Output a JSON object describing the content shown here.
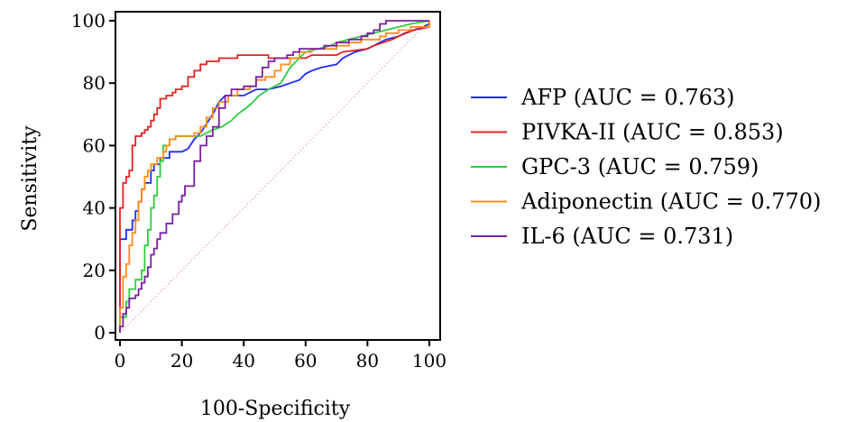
{
  "chart_data": {
    "type": "line",
    "title": "",
    "xlabel": "100-Specificity",
    "ylabel": "Sensitivity",
    "xlim": [
      0,
      100
    ],
    "ylim": [
      0,
      100
    ],
    "x_ticks": [
      "0",
      "20",
      "40",
      "60",
      "80",
      "100"
    ],
    "y_ticks": [
      "0",
      "20",
      "40",
      "60",
      "80",
      "100"
    ],
    "grid": false,
    "legend_position": "right",
    "reference_line": {
      "from": [
        0,
        0
      ],
      "to": [
        100,
        100
      ],
      "color": "#e8a3a3",
      "style": "dotted"
    },
    "series": [
      {
        "name": "AFP (AUC = 0.763)",
        "color": "#1f2bff",
        "points": [
          [
            0,
            0
          ],
          [
            0,
            4
          ],
          [
            0,
            30
          ],
          [
            2,
            30
          ],
          [
            2,
            33
          ],
          [
            4,
            33
          ],
          [
            4,
            36
          ],
          [
            5,
            36
          ],
          [
            5,
            39
          ],
          [
            6,
            39
          ],
          [
            6,
            42
          ],
          [
            7,
            42
          ],
          [
            7,
            46
          ],
          [
            8,
            46
          ],
          [
            8,
            48
          ],
          [
            10,
            48
          ],
          [
            10,
            52
          ],
          [
            11,
            52
          ],
          [
            11,
            54
          ],
          [
            13,
            54
          ],
          [
            13,
            56
          ],
          [
            16,
            56
          ],
          [
            16,
            58
          ],
          [
            20,
            58
          ],
          [
            22,
            59
          ],
          [
            24,
            62
          ],
          [
            26,
            64
          ],
          [
            28,
            67
          ],
          [
            30,
            70
          ],
          [
            32,
            74
          ],
          [
            34,
            76
          ],
          [
            38,
            76
          ],
          [
            40,
            76
          ],
          [
            42,
            77
          ],
          [
            44,
            78
          ],
          [
            48,
            78
          ],
          [
            52,
            79
          ],
          [
            55,
            80
          ],
          [
            58,
            81
          ],
          [
            60,
            83
          ],
          [
            62,
            84
          ],
          [
            65,
            85
          ],
          [
            70,
            86
          ],
          [
            72,
            88
          ],
          [
            76,
            90
          ],
          [
            80,
            91
          ],
          [
            84,
            93
          ],
          [
            86,
            94
          ],
          [
            90,
            95
          ],
          [
            92,
            96
          ],
          [
            95,
            97
          ],
          [
            98,
            98
          ],
          [
            100,
            99
          ],
          [
            100,
            100
          ]
        ]
      },
      {
        "name": "PIVKA-II (AUC = 0.853)",
        "color": "#e62020",
        "points": [
          [
            0,
            0
          ],
          [
            0,
            3
          ],
          [
            0,
            40
          ],
          [
            1,
            40
          ],
          [
            1,
            48
          ],
          [
            2,
            48
          ],
          [
            2,
            50
          ],
          [
            3,
            50
          ],
          [
            3,
            52
          ],
          [
            4,
            52
          ],
          [
            4,
            60
          ],
          [
            5,
            60
          ],
          [
            5,
            63
          ],
          [
            7,
            63
          ],
          [
            7,
            64
          ],
          [
            8,
            64
          ],
          [
            8,
            65
          ],
          [
            9,
            65
          ],
          [
            9,
            66
          ],
          [
            10,
            66
          ],
          [
            10,
            68
          ],
          [
            11,
            68
          ],
          [
            11,
            70
          ],
          [
            12,
            70
          ],
          [
            12,
            72
          ],
          [
            13,
            72
          ],
          [
            13,
            75
          ],
          [
            15,
            75
          ],
          [
            15,
            76
          ],
          [
            17,
            76
          ],
          [
            17,
            77
          ],
          [
            18,
            77
          ],
          [
            18,
            78
          ],
          [
            20,
            78
          ],
          [
            20,
            79
          ],
          [
            22,
            79
          ],
          [
            22,
            82
          ],
          [
            24,
            82
          ],
          [
            24,
            84
          ],
          [
            26,
            84
          ],
          [
            26,
            86
          ],
          [
            28,
            86
          ],
          [
            28,
            87
          ],
          [
            32,
            87
          ],
          [
            32,
            88
          ],
          [
            38,
            88
          ],
          [
            38,
            89
          ],
          [
            48,
            89
          ],
          [
            48,
            88
          ],
          [
            55,
            88
          ],
          [
            60,
            88
          ],
          [
            62,
            89
          ],
          [
            70,
            89
          ],
          [
            72,
            90
          ],
          [
            80,
            91
          ],
          [
            82,
            92
          ],
          [
            88,
            94
          ],
          [
            90,
            95
          ],
          [
            95,
            97
          ],
          [
            100,
            98
          ],
          [
            100,
            100
          ]
        ]
      },
      {
        "name": "GPC-3 (AUC = 0.759)",
        "color": "#2ecc40",
        "points": [
          [
            0,
            0
          ],
          [
            0,
            5
          ],
          [
            2,
            5
          ],
          [
            2,
            10
          ],
          [
            3,
            10
          ],
          [
            3,
            14
          ],
          [
            5,
            14
          ],
          [
            5,
            17
          ],
          [
            7,
            17
          ],
          [
            7,
            20
          ],
          [
            8,
            20
          ],
          [
            8,
            28
          ],
          [
            9,
            28
          ],
          [
            9,
            33
          ],
          [
            10,
            33
          ],
          [
            10,
            40
          ],
          [
            11,
            40
          ],
          [
            11,
            44
          ],
          [
            12,
            44
          ],
          [
            12,
            50
          ],
          [
            13,
            50
          ],
          [
            13,
            55
          ],
          [
            14,
            55
          ],
          [
            14,
            60
          ],
          [
            16,
            60
          ],
          [
            16,
            62
          ],
          [
            18,
            62
          ],
          [
            18,
            63
          ],
          [
            26,
            63
          ],
          [
            28,
            64
          ],
          [
            30,
            65
          ],
          [
            33,
            66
          ],
          [
            36,
            68
          ],
          [
            38,
            70
          ],
          [
            42,
            73
          ],
          [
            45,
            76
          ],
          [
            48,
            78
          ],
          [
            52,
            80
          ],
          [
            55,
            85
          ],
          [
            58,
            88
          ],
          [
            60,
            90
          ],
          [
            64,
            91
          ],
          [
            68,
            92
          ],
          [
            70,
            93
          ],
          [
            74,
            94
          ],
          [
            78,
            95
          ],
          [
            82,
            96
          ],
          [
            86,
            97
          ],
          [
            90,
            98
          ],
          [
            94,
            99
          ],
          [
            100,
            100
          ]
        ]
      },
      {
        "name": "Adiponectin (AUC = 0.770)",
        "color": "#ff8c1a",
        "points": [
          [
            0,
            0
          ],
          [
            0,
            8
          ],
          [
            1,
            8
          ],
          [
            1,
            18
          ],
          [
            2,
            18
          ],
          [
            2,
            22
          ],
          [
            3,
            22
          ],
          [
            3,
            28
          ],
          [
            4,
            28
          ],
          [
            4,
            32
          ],
          [
            5,
            32
          ],
          [
            5,
            36
          ],
          [
            6,
            36
          ],
          [
            6,
            42
          ],
          [
            7,
            42
          ],
          [
            7,
            46
          ],
          [
            8,
            46
          ],
          [
            8,
            50
          ],
          [
            9,
            50
          ],
          [
            9,
            52
          ],
          [
            10,
            52
          ],
          [
            10,
            54
          ],
          [
            12,
            54
          ],
          [
            12,
            56
          ],
          [
            14,
            56
          ],
          [
            14,
            58
          ],
          [
            15,
            58
          ],
          [
            15,
            60
          ],
          [
            16,
            60
          ],
          [
            16,
            62
          ],
          [
            18,
            62
          ],
          [
            18,
            63
          ],
          [
            24,
            63
          ],
          [
            24,
            64
          ],
          [
            26,
            64
          ],
          [
            26,
            66
          ],
          [
            28,
            66
          ],
          [
            28,
            69
          ],
          [
            30,
            69
          ],
          [
            30,
            72
          ],
          [
            32,
            72
          ],
          [
            32,
            74
          ],
          [
            35,
            74
          ],
          [
            35,
            76
          ],
          [
            38,
            76
          ],
          [
            38,
            78
          ],
          [
            42,
            78
          ],
          [
            42,
            79
          ],
          [
            44,
            79
          ],
          [
            44,
            81
          ],
          [
            47,
            81
          ],
          [
            47,
            82
          ],
          [
            50,
            82
          ],
          [
            50,
            84
          ],
          [
            52,
            84
          ],
          [
            52,
            86
          ],
          [
            55,
            86
          ],
          [
            55,
            88
          ],
          [
            58,
            88
          ],
          [
            58,
            90
          ],
          [
            62,
            90
          ],
          [
            62,
            91
          ],
          [
            70,
            91
          ],
          [
            70,
            92
          ],
          [
            74,
            92
          ],
          [
            74,
            93
          ],
          [
            78,
            93
          ],
          [
            78,
            94
          ],
          [
            84,
            94
          ],
          [
            84,
            95
          ],
          [
            86,
            95
          ],
          [
            86,
            96
          ],
          [
            90,
            96
          ],
          [
            90,
            97
          ],
          [
            94,
            97
          ],
          [
            94,
            98
          ],
          [
            100,
            98
          ],
          [
            100,
            100
          ]
        ]
      },
      {
        "name": "IL-6 (AUC = 0.731)",
        "color": "#7a1fa2",
        "points": [
          [
            0,
            0
          ],
          [
            0,
            2
          ],
          [
            1,
            2
          ],
          [
            1,
            6
          ],
          [
            2,
            6
          ],
          [
            2,
            8
          ],
          [
            3,
            8
          ],
          [
            3,
            11
          ],
          [
            5,
            11
          ],
          [
            5,
            12
          ],
          [
            6,
            12
          ],
          [
            6,
            14
          ],
          [
            7,
            14
          ],
          [
            7,
            16
          ],
          [
            8,
            16
          ],
          [
            8,
            18
          ],
          [
            9,
            18
          ],
          [
            9,
            21
          ],
          [
            10,
            21
          ],
          [
            10,
            25
          ],
          [
            11,
            25
          ],
          [
            11,
            27
          ],
          [
            12,
            27
          ],
          [
            12,
            30
          ],
          [
            13,
            30
          ],
          [
            13,
            32
          ],
          [
            15,
            32
          ],
          [
            15,
            35
          ],
          [
            17,
            35
          ],
          [
            17,
            38
          ],
          [
            19,
            38
          ],
          [
            19,
            42
          ],
          [
            20,
            42
          ],
          [
            20,
            44
          ],
          [
            21,
            44
          ],
          [
            21,
            47
          ],
          [
            24,
            47
          ],
          [
            24,
            55
          ],
          [
            26,
            55
          ],
          [
            26,
            60
          ],
          [
            28,
            60
          ],
          [
            28,
            63
          ],
          [
            30,
            63
          ],
          [
            30,
            66
          ],
          [
            32,
            66
          ],
          [
            32,
            72
          ],
          [
            34,
            72
          ],
          [
            34,
            76
          ],
          [
            36,
            76
          ],
          [
            36,
            78
          ],
          [
            40,
            78
          ],
          [
            40,
            79
          ],
          [
            44,
            79
          ],
          [
            44,
            82
          ],
          [
            46,
            82
          ],
          [
            46,
            85
          ],
          [
            48,
            85
          ],
          [
            48,
            87
          ],
          [
            50,
            87
          ],
          [
            50,
            88
          ],
          [
            54,
            88
          ],
          [
            54,
            89
          ],
          [
            56,
            89
          ],
          [
            56,
            90
          ],
          [
            58,
            90
          ],
          [
            58,
            91
          ],
          [
            66,
            91
          ],
          [
            66,
            92
          ],
          [
            70,
            92
          ],
          [
            70,
            93
          ],
          [
            74,
            93
          ],
          [
            74,
            94
          ],
          [
            78,
            94
          ],
          [
            78,
            95
          ],
          [
            80,
            95
          ],
          [
            80,
            96
          ],
          [
            82,
            96
          ],
          [
            82,
            97
          ],
          [
            84,
            97
          ],
          [
            84,
            99
          ],
          [
            86,
            99
          ],
          [
            86,
            100
          ],
          [
            100,
            100
          ]
        ]
      }
    ]
  }
}
